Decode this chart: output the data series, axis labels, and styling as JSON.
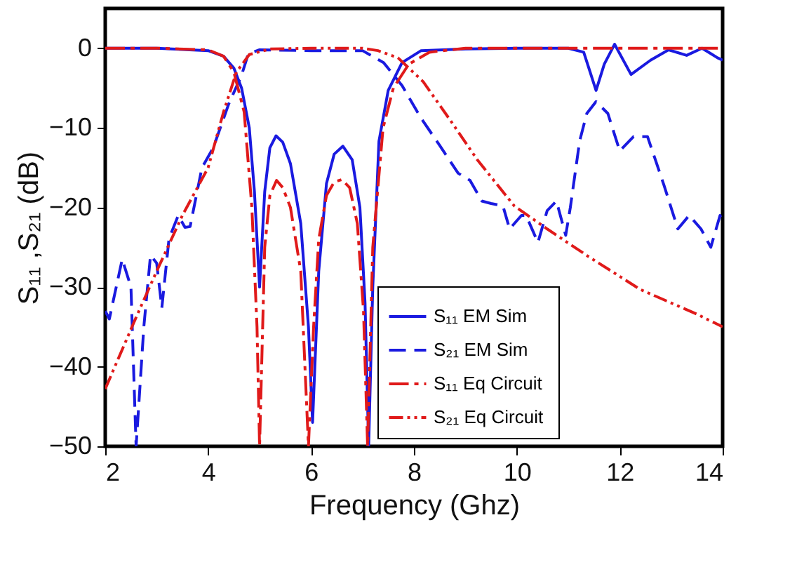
{
  "chart_data": {
    "type": "line",
    "xlabel": "Frequency (Ghz)",
    "ylabel": "S₁₁ ,S₂₁ (dB)",
    "xlim": [
      2,
      14
    ],
    "ylim": [
      -50,
      5
    ],
    "xticks": [
      2,
      4,
      6,
      8,
      10,
      12,
      14
    ],
    "yticks": [
      -50,
      -40,
      -30,
      -20,
      -10,
      0
    ],
    "grid": false,
    "legend": "bottom right",
    "marker": "none",
    "series": [
      {
        "name": "S₁₁ EM Sim",
        "color": "#1a1ae0",
        "line_style": "solid",
        "x": [
          2,
          3,
          4,
          4.3,
          4.5,
          4.65,
          4.8,
          4.9,
          5.0,
          5.1,
          5.2,
          5.32,
          5.45,
          5.6,
          5.8,
          5.95,
          6.03,
          6.15,
          6.3,
          6.45,
          6.62,
          6.8,
          6.95,
          7.05,
          7.12,
          7.2,
          7.32,
          7.5,
          7.77,
          8.14,
          9,
          10,
          11,
          11.3,
          11.54,
          11.7,
          11.9,
          12.22,
          12.6,
          12.95,
          13.3,
          13.6,
          13.9,
          14
        ],
        "values": [
          0,
          0,
          -0.3,
          -1,
          -2.5,
          -5,
          -10,
          -18,
          -30,
          -18,
          -12.5,
          -11,
          -11.8,
          -14.5,
          -22,
          -35,
          -47,
          -28,
          -17,
          -13.3,
          -12.3,
          -14,
          -20,
          -32,
          -50,
          -30,
          -11.7,
          -5.3,
          -1.8,
          -0.3,
          -0.1,
          0,
          0,
          -0.5,
          -5.3,
          -2,
          0.5,
          -3.3,
          -1.5,
          -0.2,
          -0.9,
          0,
          -1.2,
          -1.5
        ]
      },
      {
        "name": "S₂₁ EM Sim",
        "color": "#1a1ae0",
        "line_style": "dashed",
        "x": [
          2,
          2.08,
          2.33,
          2.5,
          2.6,
          2.75,
          2.88,
          3.0,
          3.1,
          3.24,
          3.42,
          3.55,
          3.65,
          3.88,
          4.1,
          4.4,
          4.65,
          4.78,
          5.0,
          6,
          7,
          7.41,
          7.77,
          8.14,
          8.5,
          8.86,
          9.09,
          9.32,
          9.5,
          9.73,
          9.86,
          10.09,
          10.18,
          10.41,
          10.59,
          10.77,
          10.95,
          11.04,
          11.22,
          11.36,
          11.54,
          11.77,
          12.0,
          12.27,
          12.54,
          12.86,
          13.13,
          13.35,
          13.58,
          13.77,
          13.95,
          14
        ],
        "values": [
          -33,
          -34,
          -26.5,
          -30,
          -50,
          -35,
          -26,
          -27,
          -32.6,
          -23.9,
          -21,
          -22.5,
          -22.4,
          -15,
          -12.5,
          -7,
          -3.4,
          -0.7,
          -0.2,
          -0.3,
          -0.3,
          -1.8,
          -4.7,
          -8.8,
          -12.2,
          -15.7,
          -16.6,
          -19.2,
          -19.5,
          -19.8,
          -22.7,
          -21,
          -21,
          -24.4,
          -20.4,
          -19.2,
          -23.5,
          -20,
          -11.7,
          -8.2,
          -6.7,
          -8.2,
          -12.9,
          -11.1,
          -11.1,
          -17.2,
          -22.7,
          -21,
          -22.7,
          -25,
          -21,
          -22
        ]
      },
      {
        "name": "S₁₁ Eq Circuit",
        "color": "#e01a1a",
        "line_style": "dashdot",
        "x": [
          2,
          3,
          4,
          4.3,
          4.5,
          4.7,
          4.85,
          4.95,
          5.0,
          5.1,
          5.2,
          5.33,
          5.45,
          5.6,
          5.8,
          5.95,
          6.05,
          6.15,
          6.3,
          6.45,
          6.6,
          6.75,
          6.9,
          7.02,
          7.1,
          7.2,
          7.4,
          7.6,
          7.9,
          8.3,
          9,
          10,
          12,
          14
        ],
        "values": [
          0,
          0,
          -0.2,
          -1,
          -3,
          -8,
          -20,
          -35,
          -50,
          -25,
          -18.5,
          -16.6,
          -17.5,
          -20,
          -28,
          -50,
          -35,
          -24,
          -18.5,
          -16.8,
          -16.5,
          -17.5,
          -22,
          -33,
          -50,
          -25,
          -10,
          -5,
          -2,
          -0.5,
          0,
          0,
          0,
          0
        ]
      },
      {
        "name": "S₂₁ Eq  Circuit",
        "color": "#e01a1a",
        "line_style": "dashdotdot",
        "x": [
          2,
          2.6,
          3.0,
          3.5,
          4.0,
          4.3,
          4.55,
          4.8,
          5.2,
          6,
          7,
          7.3,
          7.69,
          8.18,
          8.68,
          9.23,
          9.95,
          10.59,
          11.4,
          12.4,
          13.5,
          14
        ],
        "values": [
          -42.8,
          -33.8,
          -28,
          -21,
          -15,
          -8,
          -3,
          -0.8,
          -0.1,
          0,
          0,
          -0.3,
          -1.2,
          -4.2,
          -8.8,
          -14,
          -19.8,
          -22.7,
          -26.2,
          -30.3,
          -33.4,
          -35
        ]
      }
    ]
  }
}
